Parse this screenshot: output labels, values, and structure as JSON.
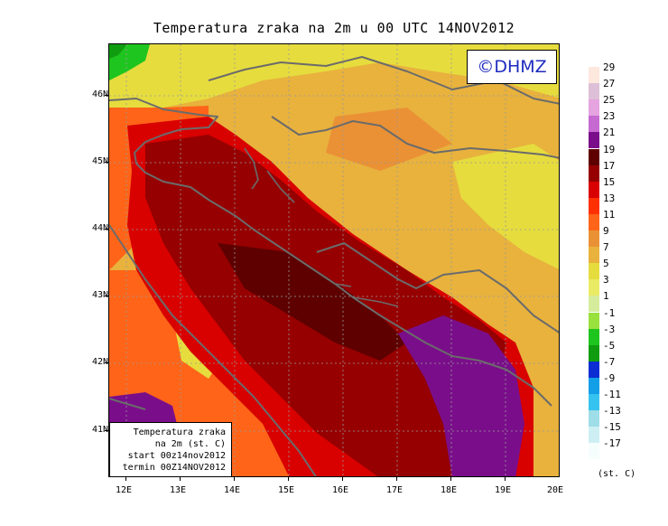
{
  "title": "Temperatura zraka na 2m u 00 UTC 14NOV2012",
  "brand": "©DHMZ",
  "info_box": [
    "Temperatura zraka",
    "na 2m (st. C)",
    "start 00z14nov2012",
    "termin 00Z14NOV2012"
  ],
  "lat_labels": [
    "46N",
    "45N",
    "44N",
    "43N",
    "42N",
    "41N"
  ],
  "lon_labels": [
    "12E",
    "13E",
    "14E",
    "15E",
    "16E",
    "17E",
    "18E",
    "19E",
    "20E"
  ],
  "legend": {
    "unit": "(st. C)",
    "labels": [
      "29",
      "27",
      "25",
      "23",
      "21",
      "19",
      "17",
      "15",
      "13",
      "11",
      "9",
      "7",
      "5",
      "3",
      "1",
      "-1",
      "-3",
      "-5",
      "-7",
      "-9",
      "-11",
      "-13",
      "-15",
      "-17"
    ],
    "colors": [
      "#fce8dd",
      "#ddc0d8",
      "#e5a3e0",
      "#c66ad2",
      "#7a0e8a",
      "#5e0000",
      "#960000",
      "#d90000",
      "#ff3000",
      "#ff6418",
      "#ea9135",
      "#e8b23d",
      "#e6dc3e",
      "#eaeb64",
      "#d5ec9d",
      "#99e13c",
      "#1fc51f",
      "#0f9d0f",
      "#0b2dd3",
      "#139ee8",
      "#37c3f0",
      "#9fdde8",
      "#cdeff4",
      "#f6fdfd"
    ]
  }
}
